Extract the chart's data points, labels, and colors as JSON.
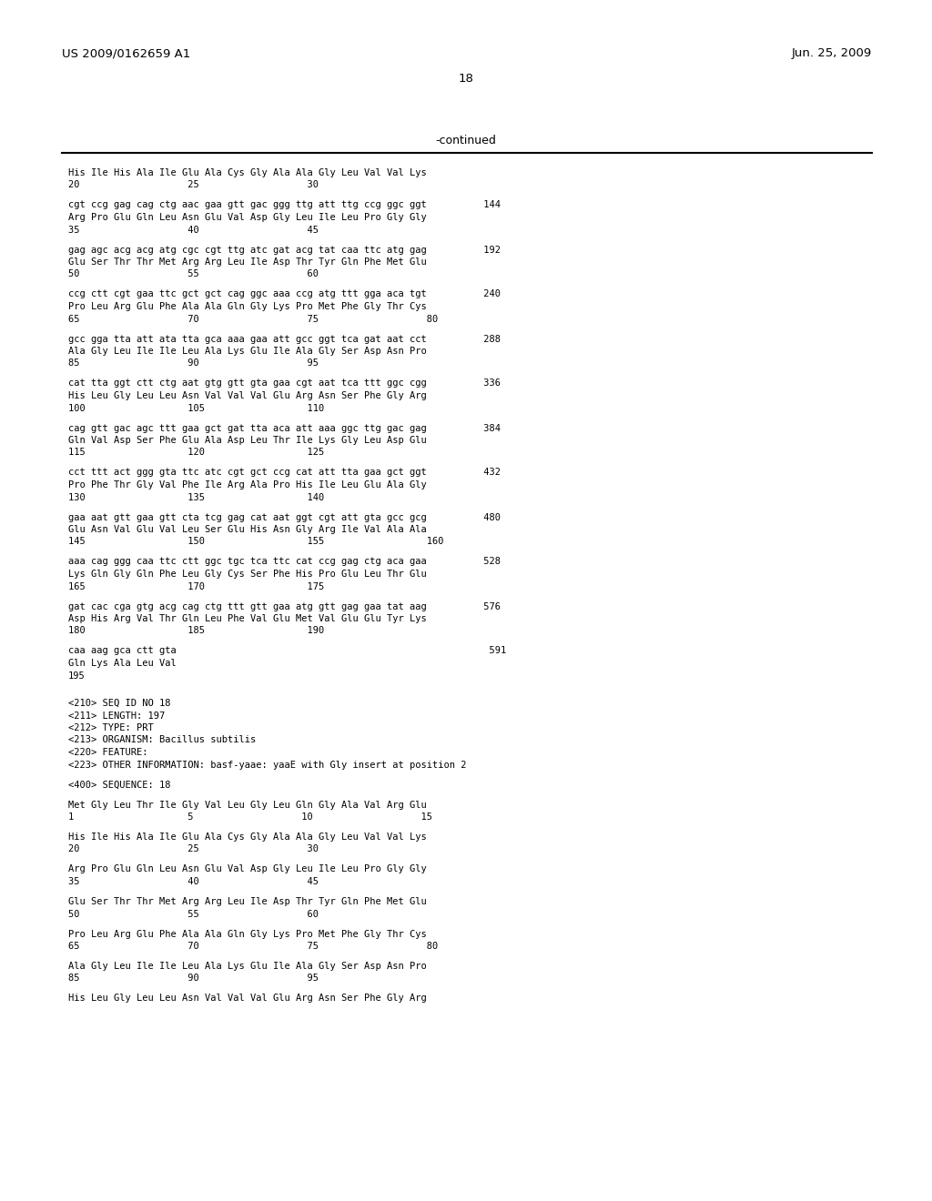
{
  "header_left": "US 2009/0162659 A1",
  "header_right": "Jun. 25, 2009",
  "page_number": "18",
  "continued_label": "-continued",
  "background_color": "#ffffff",
  "text_color": "#000000",
  "content": [
    {
      "text": "His Ile His Ala Ile Glu Ala Cys Gly Ala Ala Gly Leu Val Val Lys",
      "type": "seq"
    },
    {
      "text": "20                   25                   30",
      "type": "num"
    },
    {
      "text": "",
      "type": "blank"
    },
    {
      "text": "cgt ccg gag cag ctg aac gaa gtt gac ggg ttg att ttg ccg ggc ggt          144",
      "type": "dna"
    },
    {
      "text": "Arg Pro Glu Gln Leu Asn Glu Val Asp Gly Leu Ile Leu Pro Gly Gly",
      "type": "seq"
    },
    {
      "text": "35                   40                   45",
      "type": "num"
    },
    {
      "text": "",
      "type": "blank"
    },
    {
      "text": "gag agc acg acg atg cgc cgt ttg atc gat acg tat caa ttc atg gag          192",
      "type": "dna"
    },
    {
      "text": "Glu Ser Thr Thr Met Arg Arg Leu Ile Asp Thr Tyr Gln Phe Met Glu",
      "type": "seq"
    },
    {
      "text": "50                   55                   60",
      "type": "num"
    },
    {
      "text": "",
      "type": "blank"
    },
    {
      "text": "ccg ctt cgt gaa ttc gct gct cag ggc aaa ccg atg ttt gga aca tgt          240",
      "type": "dna"
    },
    {
      "text": "Pro Leu Arg Glu Phe Ala Ala Gln Gly Lys Pro Met Phe Gly Thr Cys",
      "type": "seq"
    },
    {
      "text": "65                   70                   75                   80",
      "type": "num"
    },
    {
      "text": "",
      "type": "blank"
    },
    {
      "text": "gcc gga tta att ata tta gca aaa gaa att gcc ggt tca gat aat cct          288",
      "type": "dna"
    },
    {
      "text": "Ala Gly Leu Ile Ile Leu Ala Lys Glu Ile Ala Gly Ser Asp Asn Pro",
      "type": "seq"
    },
    {
      "text": "85                   90                   95",
      "type": "num"
    },
    {
      "text": "",
      "type": "blank"
    },
    {
      "text": "cat tta ggt ctt ctg aat gtg gtt gta gaa cgt aat tca ttt ggc cgg          336",
      "type": "dna"
    },
    {
      "text": "His Leu Gly Leu Leu Asn Val Val Val Glu Arg Asn Ser Phe Gly Arg",
      "type": "seq"
    },
    {
      "text": "100                  105                  110",
      "type": "num"
    },
    {
      "text": "",
      "type": "blank"
    },
    {
      "text": "cag gtt gac agc ttt gaa gct gat tta aca att aaa ggc ttg gac gag          384",
      "type": "dna"
    },
    {
      "text": "Gln Val Asp Ser Phe Glu Ala Asp Leu Thr Ile Lys Gly Leu Asp Glu",
      "type": "seq"
    },
    {
      "text": "115                  120                  125",
      "type": "num"
    },
    {
      "text": "",
      "type": "blank"
    },
    {
      "text": "cct ttt act ggg gta ttc atc cgt gct ccg cat att tta gaa gct ggt          432",
      "type": "dna"
    },
    {
      "text": "Pro Phe Thr Gly Val Phe Ile Arg Ala Pro His Ile Leu Glu Ala Gly",
      "type": "seq"
    },
    {
      "text": "130                  135                  140",
      "type": "num"
    },
    {
      "text": "",
      "type": "blank"
    },
    {
      "text": "gaa aat gtt gaa gtt cta tcg gag cat aat ggt cgt att gta gcc gcg          480",
      "type": "dna"
    },
    {
      "text": "Glu Asn Val Glu Val Leu Ser Glu His Asn Gly Arg Ile Val Ala Ala",
      "type": "seq"
    },
    {
      "text": "145                  150                  155                  160",
      "type": "num"
    },
    {
      "text": "",
      "type": "blank"
    },
    {
      "text": "aaa cag ggg caa ttc ctt ggc tgc tca ttc cat ccg gag ctg aca gaa          528",
      "type": "dna"
    },
    {
      "text": "Lys Gln Gly Gln Phe Leu Gly Cys Ser Phe His Pro Glu Leu Thr Glu",
      "type": "seq"
    },
    {
      "text": "165                  170                  175",
      "type": "num"
    },
    {
      "text": "",
      "type": "blank"
    },
    {
      "text": "gat cac cga gtg acg cag ctg ttt gtt gaa atg gtt gag gaa tat aag          576",
      "type": "dna"
    },
    {
      "text": "Asp His Arg Val Thr Gln Leu Phe Val Glu Met Val Glu Glu Tyr Lys",
      "type": "seq"
    },
    {
      "text": "180                  185                  190",
      "type": "num"
    },
    {
      "text": "",
      "type": "blank"
    },
    {
      "text": "caa aag gca ctt gta                                                       591",
      "type": "dna"
    },
    {
      "text": "Gln Lys Ala Leu Val",
      "type": "seq"
    },
    {
      "text": "195",
      "type": "num"
    },
    {
      "text": "",
      "type": "blank"
    },
    {
      "text": "",
      "type": "blank"
    },
    {
      "text": "<210> SEQ ID NO 18",
      "type": "meta"
    },
    {
      "text": "<211> LENGTH: 197",
      "type": "meta"
    },
    {
      "text": "<212> TYPE: PRT",
      "type": "meta"
    },
    {
      "text": "<213> ORGANISM: Bacillus subtilis",
      "type": "meta"
    },
    {
      "text": "<220> FEATURE:",
      "type": "meta"
    },
    {
      "text": "<223> OTHER INFORMATION: basf-yaae: yaaE with Gly insert at position 2",
      "type": "meta"
    },
    {
      "text": "",
      "type": "blank"
    },
    {
      "text": "<400> SEQUENCE: 18",
      "type": "meta"
    },
    {
      "text": "",
      "type": "blank"
    },
    {
      "text": "Met Gly Leu Thr Ile Gly Val Leu Gly Leu Gln Gly Ala Val Arg Glu",
      "type": "seq"
    },
    {
      "text": "1                    5                   10                   15",
      "type": "num"
    },
    {
      "text": "",
      "type": "blank"
    },
    {
      "text": "His Ile His Ala Ile Glu Ala Cys Gly Ala Ala Gly Leu Val Val Lys",
      "type": "seq"
    },
    {
      "text": "20                   25                   30",
      "type": "num"
    },
    {
      "text": "",
      "type": "blank"
    },
    {
      "text": "Arg Pro Glu Gln Leu Asn Glu Val Asp Gly Leu Ile Leu Pro Gly Gly",
      "type": "seq"
    },
    {
      "text": "35                   40                   45",
      "type": "num"
    },
    {
      "text": "",
      "type": "blank"
    },
    {
      "text": "Glu Ser Thr Thr Met Arg Arg Leu Ile Asp Thr Tyr Gln Phe Met Glu",
      "type": "seq"
    },
    {
      "text": "50                   55                   60",
      "type": "num"
    },
    {
      "text": "",
      "type": "blank"
    },
    {
      "text": "Pro Leu Arg Glu Phe Ala Ala Gln Gly Lys Pro Met Phe Gly Thr Cys",
      "type": "seq"
    },
    {
      "text": "65                   70                   75                   80",
      "type": "num"
    },
    {
      "text": "",
      "type": "blank"
    },
    {
      "text": "Ala Gly Leu Ile Ile Leu Ala Lys Glu Ile Ala Gly Ser Asp Asn Pro",
      "type": "seq"
    },
    {
      "text": "85                   90                   95",
      "type": "num"
    },
    {
      "text": "",
      "type": "blank"
    },
    {
      "text": "His Leu Gly Leu Leu Asn Val Val Val Glu Arg Asn Ser Phe Gly Arg",
      "type": "seq"
    }
  ]
}
